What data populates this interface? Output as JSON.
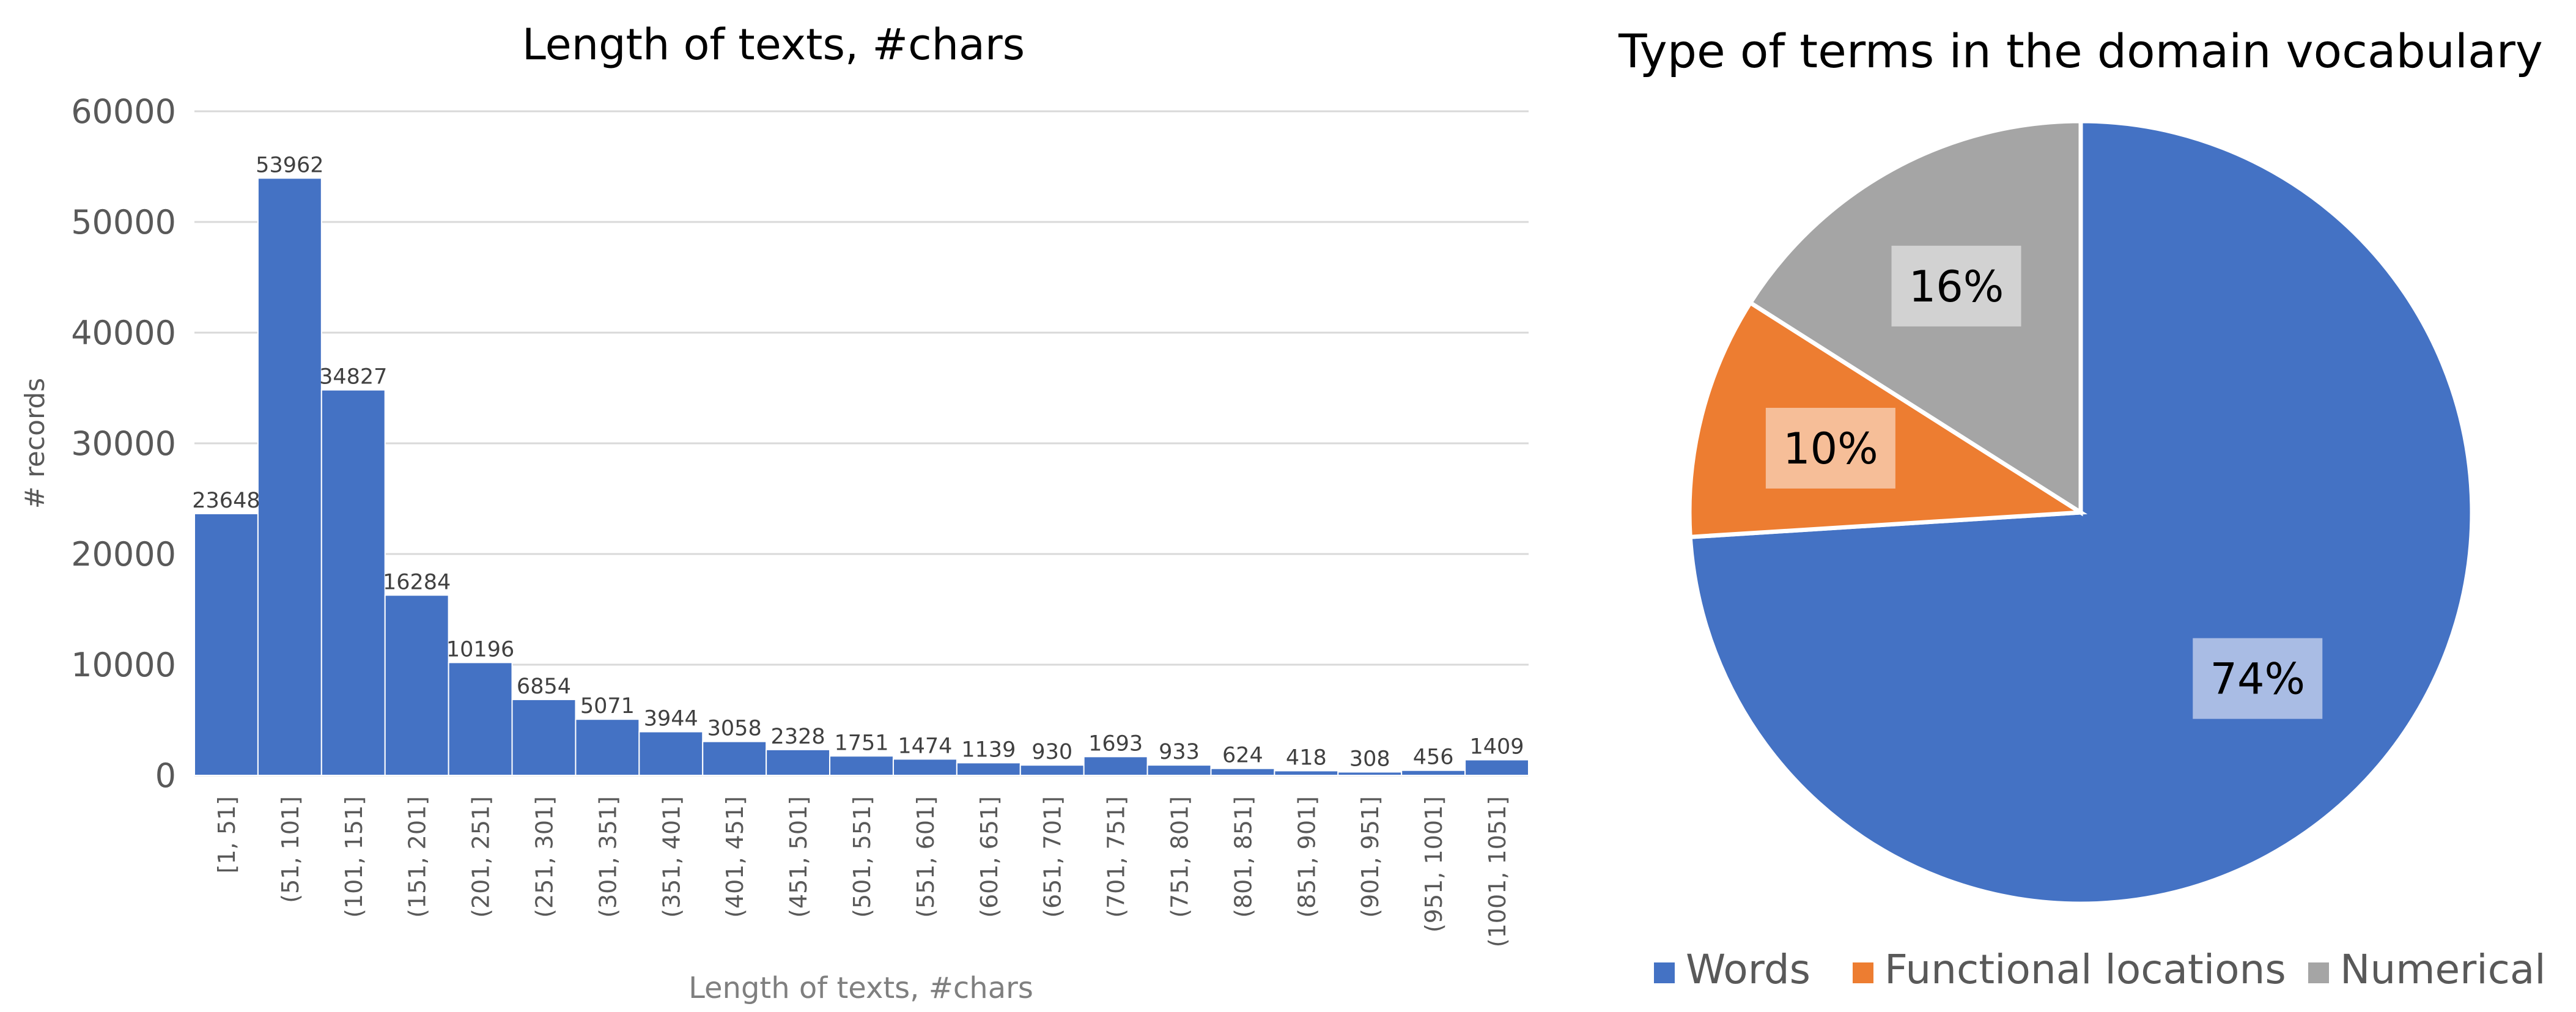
{
  "chart_data": [
    {
      "type": "bar",
      "title": "Length of texts, #chars",
      "xlabel": "Length of texts, #chars",
      "ylabel": "# records",
      "ylim": [
        0,
        60000
      ],
      "yticks": [
        "0",
        "10000",
        "20000",
        "30000",
        "40000",
        "50000",
        "60000"
      ],
      "grid": true,
      "color": "#4472C4",
      "categories": [
        "[1, 51]",
        "(51, 101]",
        "(101, 151]",
        "(151, 201]",
        "(201, 251]",
        "(251, 301]",
        "(301, 351]",
        "(351, 401]",
        "(401, 451]",
        "(451, 501]",
        "(501, 551]",
        "(551, 601]",
        "(601, 651]",
        "(651, 701]",
        "(701, 751]",
        "(751, 801]",
        "(801, 851]",
        "(851, 901]",
        "(901, 951]",
        "(951, 1001]",
        "(1001, 1051]"
      ],
      "values": [
        23648,
        53962,
        34827,
        16284,
        10196,
        6854,
        5071,
        3944,
        3058,
        2328,
        1751,
        1474,
        1139,
        930,
        1693,
        933,
        624,
        418,
        308,
        456,
        1409
      ]
    },
    {
      "type": "pie",
      "title": "Type of terms in the domain vocabulary",
      "legend_position": "bottom",
      "slices": [
        {
          "name": "Words",
          "percent": 74,
          "label": "74%",
          "color": "#4472C4",
          "label_bg": "#A9BCE4"
        },
        {
          "name": "Functional locations",
          "percent": 10,
          "label": "10%",
          "color": "#ED7D31",
          "label_bg": "#F6BE98"
        },
        {
          "name": "Numerical",
          "percent": 16,
          "label": "16%",
          "color": "#A5A5A5",
          "label_bg": "#D2D2D2"
        }
      ]
    }
  ]
}
